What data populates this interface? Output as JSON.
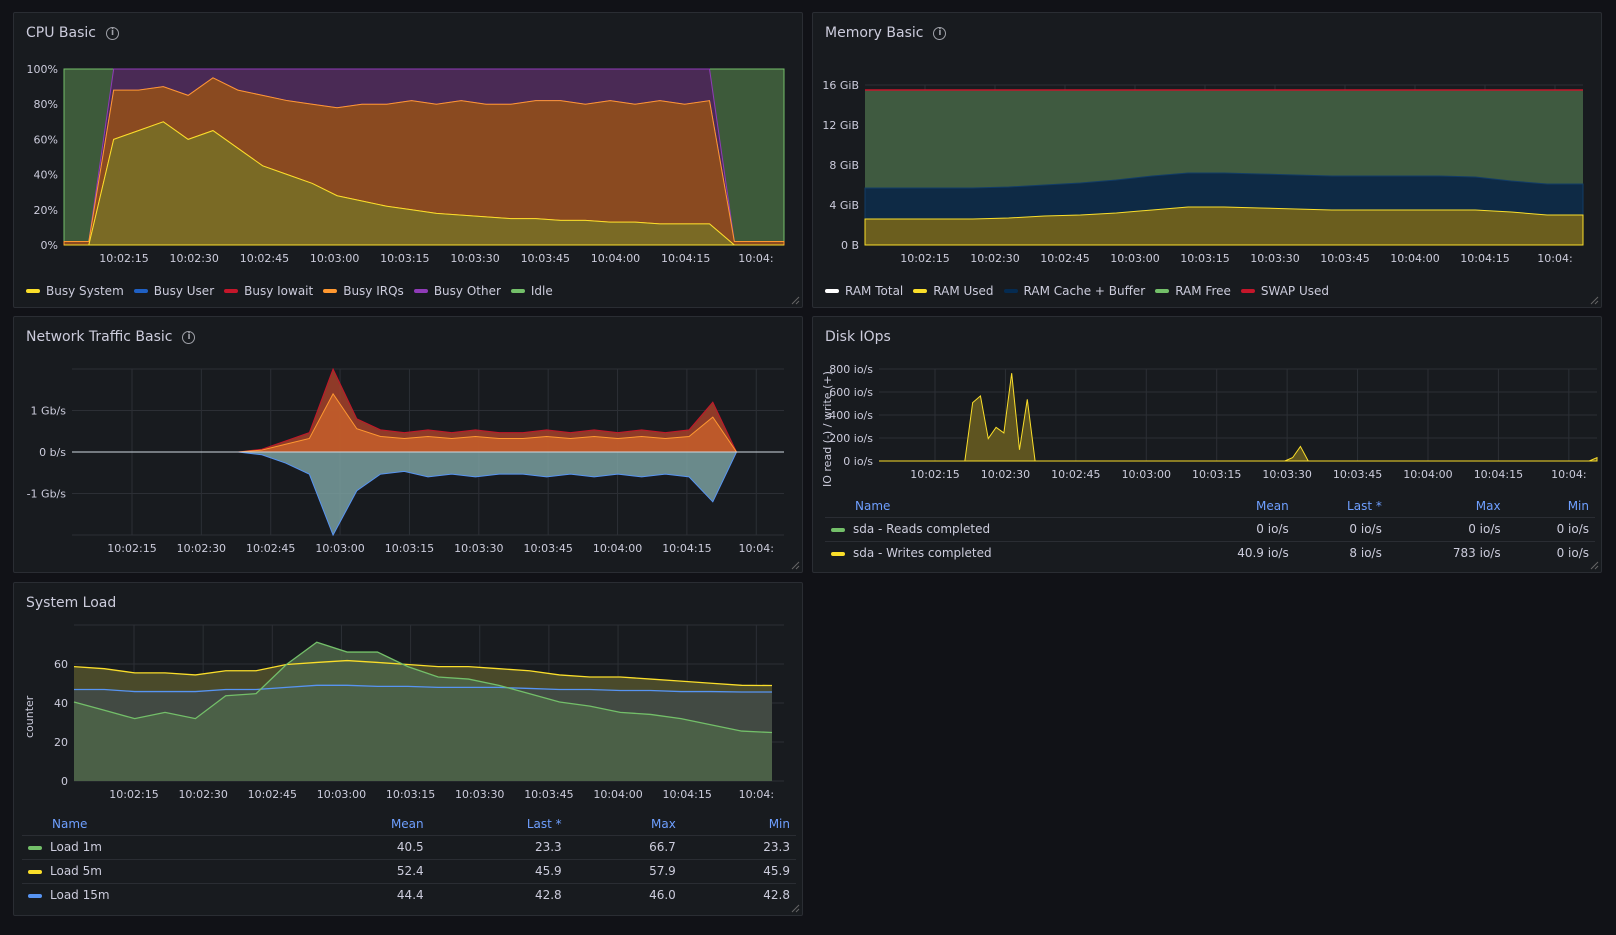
{
  "colors": {
    "busy_system": "#fade2a",
    "busy_user": "#1f60c4",
    "busy_iowait": "#c4162a",
    "busy_irqs": "#ff9830",
    "busy_other": "#8f3bb8",
    "idle": "#73bf69",
    "ram_total": "#ffffff",
    "ram_used": "#fade2a",
    "ram_cache": "#052b51",
    "ram_free": "#73bf69",
    "swap_used": "#c4162a",
    "load1": "#73bf69",
    "load5": "#fade2a",
    "load15": "#5794f2"
  },
  "cpu": {
    "title": "CPU Basic",
    "legend": [
      "Busy System",
      "Busy User",
      "Busy Iowait",
      "Busy IRQs",
      "Busy Other",
      "Idle"
    ],
    "chart_data": {
      "type": "area",
      "y_ticks": [
        "100%",
        "80%",
        "60%",
        "40%",
        "20%",
        "0%"
      ],
      "x_ticks": [
        "10:02:15",
        "10:02:30",
        "10:02:45",
        "10:03:00",
        "10:03:15",
        "10:03:30",
        "10:03:45",
        "10:04:00",
        "10:04:15",
        "10:04:"
      ],
      "ylim": [
        0,
        100
      ],
      "busy_system": [
        0,
        0,
        60,
        65,
        70,
        60,
        65,
        55,
        45,
        40,
        35,
        28,
        25,
        22,
        20,
        18,
        17,
        16,
        15,
        15,
        14,
        14,
        13,
        13,
        12,
        12,
        12,
        0,
        0,
        0
      ],
      "busy_irqs_top": [
        2,
        2,
        88,
        88,
        90,
        85,
        95,
        88,
        85,
        82,
        80,
        78,
        80,
        80,
        82,
        80,
        82,
        80,
        80,
        82,
        82,
        80,
        82,
        80,
        82,
        80,
        82,
        2,
        2,
        2
      ],
      "busy_other_top": [
        2,
        2,
        100,
        100,
        100,
        100,
        100,
        100,
        100,
        100,
        100,
        100,
        100,
        100,
        100,
        100,
        100,
        100,
        100,
        100,
        100,
        100,
        100,
        100,
        100,
        100,
        100,
        2,
        2,
        2
      ]
    }
  },
  "memory": {
    "title": "Memory Basic",
    "legend": [
      "RAM Total",
      "RAM Used",
      "RAM Cache + Buffer",
      "RAM Free",
      "SWAP Used"
    ],
    "chart_data": {
      "type": "area",
      "y_ticks": [
        "16 GiB",
        "12 GiB",
        "8 GiB",
        "4 GiB",
        "0 B"
      ],
      "x_ticks": [
        "10:02:15",
        "10:02:30",
        "10:02:45",
        "10:03:00",
        "10:03:15",
        "10:03:30",
        "10:03:45",
        "10:04:00",
        "10:04:15",
        "10:04:"
      ],
      "ylim": [
        0,
        17
      ],
      "ram_used": [
        2.6,
        2.6,
        2.6,
        2.6,
        2.7,
        2.9,
        3.0,
        3.2,
        3.5,
        3.8,
        3.8,
        3.7,
        3.6,
        3.5,
        3.5,
        3.5,
        3.5,
        3.5,
        3.3,
        3.0,
        3.0
      ],
      "ram_cache_top": [
        5.7,
        5.7,
        5.7,
        5.7,
        5.8,
        6.0,
        6.2,
        6.5,
        6.9,
        7.2,
        7.2,
        7.1,
        7.0,
        6.9,
        6.9,
        6.9,
        6.9,
        6.8,
        6.4,
        6.1,
        6.1
      ],
      "ram_total": 15.5
    }
  },
  "network": {
    "title": "Network Traffic Basic",
    "chart_data": {
      "type": "area",
      "y_ticks": [
        "1 Gb/s",
        "0 b/s",
        "-1 Gb/s"
      ],
      "x_ticks": [
        "10:02:15",
        "10:02:30",
        "10:02:45",
        "10:03:00",
        "10:03:15",
        "10:03:30",
        "10:03:45",
        "10:04:00",
        "10:04:15",
        "10:04:"
      ],
      "ylim": [
        -1.5,
        1.5
      ],
      "rx": [
        0,
        0,
        0,
        0,
        0,
        0,
        0,
        0,
        0.05,
        0.2,
        0.35,
        1.5,
        0.6,
        0.4,
        0.35,
        0.4,
        0.35,
        0.4,
        0.35,
        0.35,
        0.4,
        0.35,
        0.4,
        0.35,
        0.4,
        0.35,
        0.4,
        0.9,
        0,
        0,
        0
      ],
      "tx": [
        0,
        0,
        0,
        0,
        0,
        0,
        0,
        0,
        -0.05,
        -0.2,
        -0.4,
        -1.5,
        -0.7,
        -0.4,
        -0.35,
        -0.45,
        -0.4,
        -0.45,
        -0.4,
        -0.4,
        -0.45,
        -0.4,
        -0.45,
        -0.4,
        -0.45,
        -0.4,
        -0.45,
        -0.9,
        0,
        0,
        0
      ]
    }
  },
  "disk": {
    "title": "Disk IOps",
    "ylabel": "IO read (-) / write (+)",
    "chart_data": {
      "type": "area",
      "y_ticks": [
        "800 io/s",
        "600 io/s",
        "400 io/s",
        "200 io/s",
        "0 io/s"
      ],
      "x_ticks": [
        "10:02:15",
        "10:02:30",
        "10:02:45",
        "10:03:00",
        "10:03:15",
        "10:03:30",
        "10:03:45",
        "10:04:00",
        "10:04:15",
        "10:04:"
      ],
      "ylim": [
        0,
        820
      ],
      "writes": [
        0,
        0,
        0,
        0,
        0,
        0,
        0,
        0,
        0,
        0,
        0,
        0,
        520,
        580,
        200,
        300,
        250,
        783,
        100,
        550,
        0,
        0,
        0,
        0,
        0,
        0,
        0,
        0,
        0,
        0,
        0,
        0,
        0,
        0,
        0,
        0,
        0,
        0,
        0,
        0,
        0,
        0,
        0,
        0,
        0,
        0,
        0,
        0,
        0,
        0,
        0,
        0,
        0,
        30,
        130,
        0,
        0,
        0,
        0,
        0,
        0,
        0,
        0,
        0,
        0,
        0,
        0,
        0,
        0,
        0,
        0,
        0,
        0,
        0,
        0,
        0,
        0,
        0,
        0,
        0,
        0,
        0,
        0,
        0,
        0,
        0,
        0,
        0,
        0,
        0,
        0,
        0,
        30
      ]
    },
    "columns": [
      "Name",
      "Mean",
      "Last *",
      "Max",
      "Min"
    ],
    "rows": [
      {
        "name": "sda - Reads completed",
        "mean": "0 io/s",
        "last": "0 io/s",
        "max": "0 io/s",
        "min": "0 io/s",
        "color": "#73bf69"
      },
      {
        "name": "sda - Writes completed",
        "mean": "40.9 io/s",
        "last": "8 io/s",
        "max": "783 io/s",
        "min": "0 io/s",
        "color": "#fade2a"
      }
    ]
  },
  "load": {
    "title": "System Load",
    "ylabel": "counter",
    "chart_data": {
      "type": "area",
      "y_ticks": [
        "60",
        "40",
        "20",
        "0"
      ],
      "x_ticks": [
        "10:02:15",
        "10:02:30",
        "10:02:45",
        "10:03:00",
        "10:03:15",
        "10:03:30",
        "10:03:45",
        "10:04:00",
        "10:04:15",
        "10:04:"
      ],
      "ylim": [
        0,
        75
      ],
      "load1": [
        38,
        34,
        30,
        33,
        30,
        41,
        42,
        56,
        66.7,
        62,
        62,
        55,
        50,
        49,
        46,
        42,
        38,
        36,
        33,
        32,
        30,
        27,
        24,
        23.3
      ],
      "load5": [
        55,
        54,
        52,
        52,
        51,
        53,
        53,
        56,
        57,
        57.9,
        57,
        56,
        55,
        55,
        54,
        53,
        51,
        50,
        50,
        49,
        48,
        47,
        46,
        45.9
      ],
      "load15": [
        44,
        44,
        43,
        43,
        43,
        44,
        44,
        45,
        46,
        46,
        45.5,
        45.5,
        45,
        45,
        45,
        44.5,
        44,
        44,
        43.5,
        43.5,
        43,
        43,
        42.8,
        42.8
      ]
    },
    "columns": [
      "Name",
      "Mean",
      "Last *",
      "Max",
      "Min"
    ],
    "rows": [
      {
        "name": "Load 1m",
        "mean": "40.5",
        "last": "23.3",
        "max": "66.7",
        "min": "23.3",
        "color": "#73bf69"
      },
      {
        "name": "Load 5m",
        "mean": "52.4",
        "last": "45.9",
        "max": "57.9",
        "min": "45.9",
        "color": "#fade2a"
      },
      {
        "name": "Load 15m",
        "mean": "44.4",
        "last": "42.8",
        "max": "46.0",
        "min": "42.8",
        "color": "#5794f2"
      }
    ]
  }
}
